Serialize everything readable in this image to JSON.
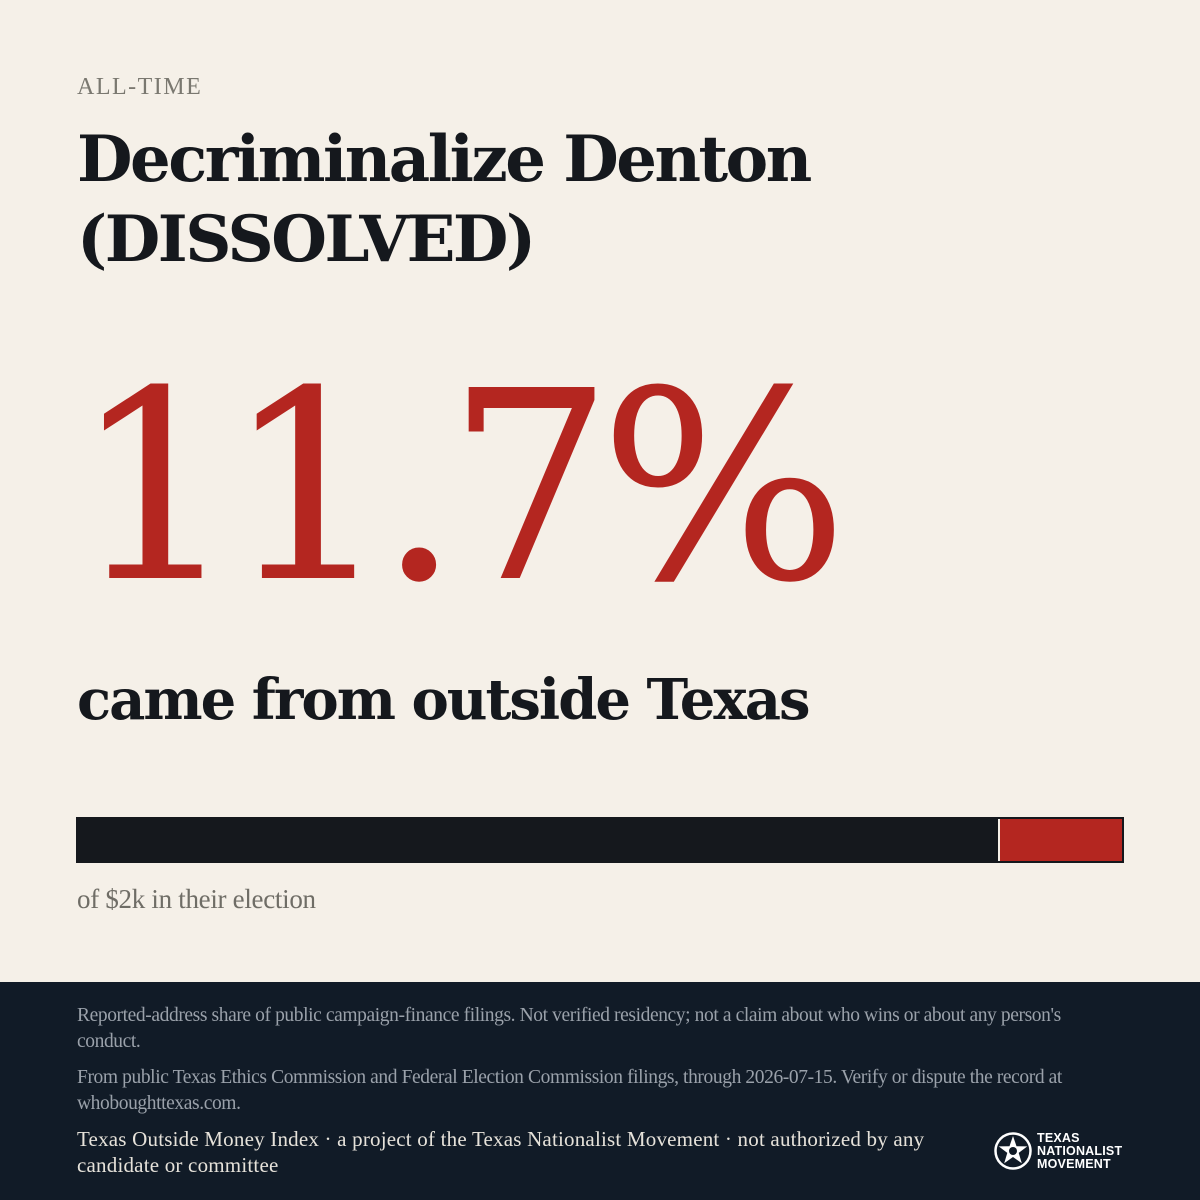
{
  "kicker": "ALL-TIME",
  "title": "Decriminalize Denton (DISSOLVED)",
  "headline_stat": {
    "value_text": "11.7%",
    "value": 11.7,
    "caption": "came from outside Texas"
  },
  "bar": {
    "fraction": 0.117,
    "caption": "of $2k in their election",
    "colors": {
      "base": "#15181d",
      "highlight": "#b42620"
    }
  },
  "footer": {
    "note1": "Reported-address share of public campaign-finance filings. Not verified residency; not a claim about who wins or about any person's conduct.",
    "note2": "From public Texas Ethics Commission and Federal Election Commission filings, through 2026-07-15. Verify or dispute the record at whoboughttexas.com.",
    "credit": "Texas Outside Money Index · a project of the Texas Nationalist Movement · not authorized by any candidate or committee",
    "logo": {
      "icon": "tnm-star-seal-icon",
      "lines": [
        "TEXAS",
        "NATIONALIST",
        "MOVEMENT"
      ]
    }
  },
  "colors": {
    "background": "#f5f0e8",
    "accent": "#b42620",
    "ink": "#15181d",
    "footer": "#111b27"
  }
}
